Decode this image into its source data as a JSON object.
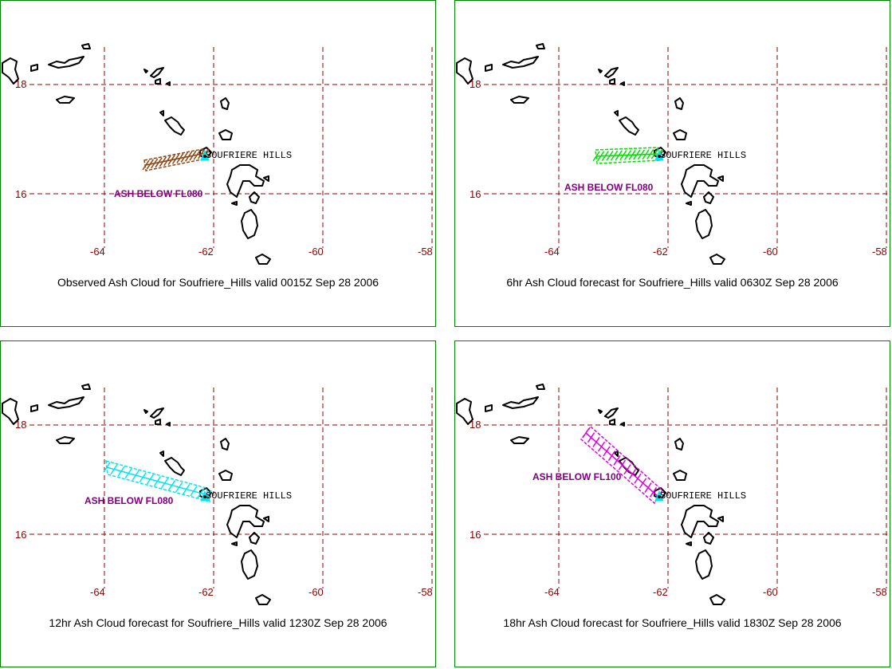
{
  "volcano_label": "SOUFRIERE HILLS",
  "lon_ticks": [
    "-64",
    "-62",
    "-60",
    "-58"
  ],
  "lat_ticks": [
    "18",
    "16"
  ],
  "colors": {
    "grid": "#8b0000",
    "frame": "#008000",
    "ash_text": "#800080"
  },
  "panels": [
    {
      "caption": "Observed Ash Cloud for Soufriere_Hills valid 0015Z Sep 28 2006",
      "ash_label": "ASH BELOW FL080",
      "cloud_color": "#8b4513"
    },
    {
      "caption": "6hr Ash Cloud forecast for Soufriere_Hills valid 0630Z Sep 28 2006",
      "ash_label": "ASH BELOW FL080",
      "cloud_color": "#00e000"
    },
    {
      "caption": "12hr Ash Cloud forecast for Soufriere_Hills valid 1230Z Sep 28 2006",
      "ash_label": "ASH BELOW FL080",
      "cloud_color": "#00e5ee"
    },
    {
      "caption": "18hr Ash Cloud forecast for Soufriere_Hills valid 1830Z Sep 28 2006",
      "ash_label": "ASH BELOW FL100",
      "cloud_color": "#e000e0"
    }
  ]
}
